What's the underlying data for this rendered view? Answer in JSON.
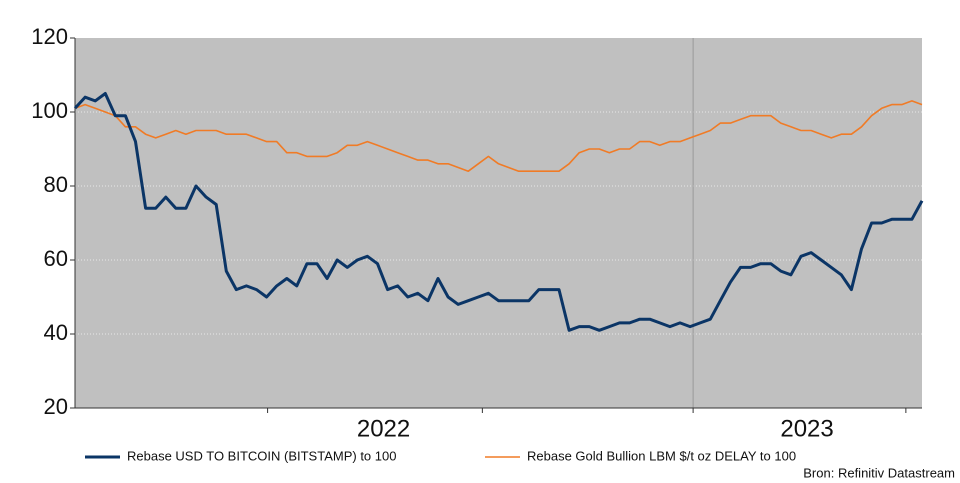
{
  "chart_data": {
    "type": "line",
    "xlim": [
      0,
      84
    ],
    "xticks": [
      19.1,
      40.4,
      61.3,
      82.4
    ],
    "xlabels": [
      {
        "value": 30.6,
        "label": "2022"
      },
      {
        "value": 72.6,
        "label": "2023"
      }
    ],
    "x_gridlines": [
      61.3
    ],
    "ylim": [
      20,
      120
    ],
    "yticks": [
      20,
      40,
      60,
      80,
      100,
      120
    ],
    "grid": true,
    "series": [
      {
        "name": "Rebase USD TO BITCOIN (BITSTAMP) to 100",
        "color": "#0b3566",
        "values": [
          101,
          104,
          103,
          105,
          99,
          99,
          92,
          74,
          74,
          77,
          74,
          74,
          80,
          77,
          75,
          57,
          52,
          53,
          52,
          50,
          53,
          55,
          53,
          59,
          59,
          55,
          60,
          58,
          60,
          61,
          59,
          52,
          53,
          50,
          51,
          49,
          55,
          50,
          48,
          49,
          50,
          51,
          49,
          49,
          49,
          49,
          52,
          52,
          52,
          41,
          42,
          42,
          41,
          42,
          43,
          43,
          44,
          44,
          43,
          42,
          43,
          42,
          43,
          44,
          49,
          54,
          58,
          58,
          59,
          59,
          57,
          56,
          61,
          62,
          60,
          58,
          56,
          52,
          63,
          70,
          70,
          71,
          71,
          71,
          76
        ]
      },
      {
        "name": "Rebase Gold Bullion LBM $/t oz DELAY to 100",
        "color": "#f07b26",
        "values": [
          101,
          102,
          101,
          100,
          99,
          96,
          96,
          94,
          93,
          94,
          95,
          94,
          95,
          95,
          95,
          94,
          94,
          94,
          93,
          92,
          92,
          89,
          89,
          88,
          88,
          88,
          89,
          91,
          91,
          92,
          91,
          90,
          89,
          88,
          87,
          87,
          86,
          86,
          85,
          84,
          86,
          88,
          86,
          85,
          84,
          84,
          84,
          84,
          84,
          86,
          89,
          90,
          90,
          89,
          90,
          90,
          92,
          92,
          91,
          92,
          92,
          93,
          94,
          95,
          97,
          97,
          98,
          99,
          99,
          99,
          97,
          96,
          95,
          95,
          94,
          93,
          94,
          94,
          96,
          99,
          101,
          102,
          102,
          103,
          102
        ]
      }
    ],
    "source": "Bron: Refinitiv Datastream"
  }
}
